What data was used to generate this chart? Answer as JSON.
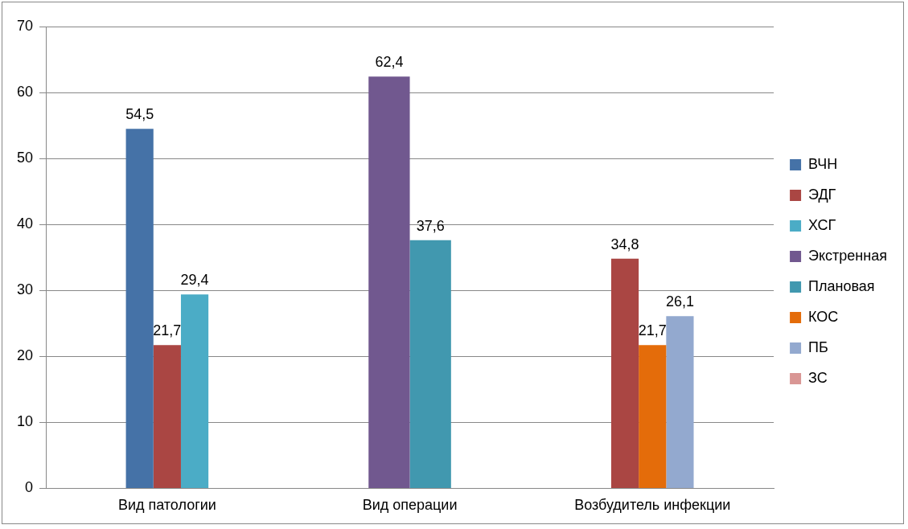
{
  "chart_data": {
    "type": "bar",
    "categories": [
      "Вид патологии",
      "Вид операции",
      "Возбудитель инфекции"
    ],
    "series": [
      {
        "name": "ВЧН",
        "color": "#4572a7",
        "values": [
          54.5,
          null,
          null
        ],
        "value_labels": [
          "54,5",
          null,
          null
        ]
      },
      {
        "name": "ЭДГ",
        "color": "#aa4643",
        "values": [
          21.7,
          null,
          34.8
        ],
        "value_labels": [
          "21,7",
          null,
          "34,8"
        ]
      },
      {
        "name": "ХСГ",
        "color": "#4bacc6",
        "values": [
          29.4,
          null,
          null
        ],
        "value_labels": [
          "29,4",
          null,
          null
        ]
      },
      {
        "name": "Экстренная",
        "color": "#71588f",
        "values": [
          null,
          62.4,
          null
        ],
        "value_labels": [
          null,
          "62,4",
          null
        ]
      },
      {
        "name": "Плановая",
        "color": "#4198af",
        "values": [
          null,
          37.6,
          null
        ],
        "value_labels": [
          null,
          "37,6",
          null
        ]
      },
      {
        "name": "КОС",
        "color": "#e46c0a",
        "values": [
          null,
          null,
          21.7
        ],
        "value_labels": [
          null,
          null,
          "21,7"
        ]
      },
      {
        "name": "ПБ",
        "color": "#93a9cf",
        "values": [
          null,
          null,
          26.1
        ],
        "value_labels": [
          null,
          null,
          "26,1"
        ]
      },
      {
        "name": "ЗС",
        "color": "#d99694",
        "values": [
          null,
          null,
          null
        ]
      }
    ],
    "ylim": [
      0,
      70
    ],
    "yticks": [
      0,
      10,
      20,
      30,
      40,
      50,
      60,
      70
    ],
    "grid": "y",
    "legend": "right"
  }
}
